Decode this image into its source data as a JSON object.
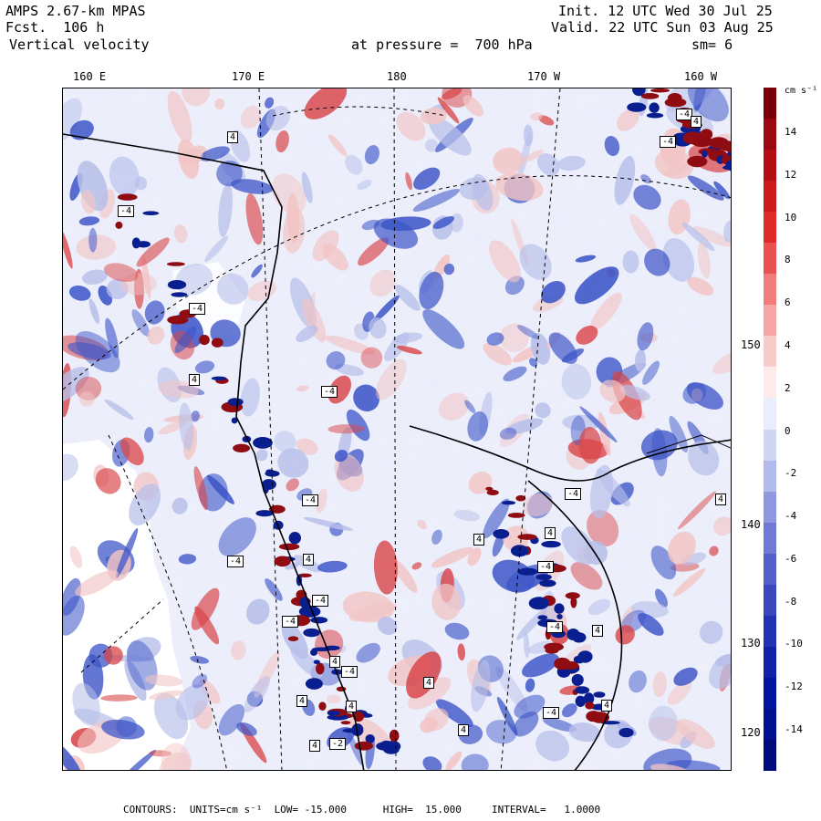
{
  "header": {
    "model": "AMPS 2.67-km MPAS",
    "init": "Init. 12 UTC Wed 30 Jul 25",
    "forecast": "Fcst.  106 h",
    "valid": "Valid. 22 UTC Sun 03 Aug 25",
    "field": "Vertical velocity",
    "level": "at pressure =  700 hPa",
    "smoothing": "sm= 6"
  },
  "map": {
    "longitude_labels": [
      "160 E",
      "170 E",
      "180",
      "170 W",
      "160 W"
    ],
    "latitude_labels": [
      "150 W",
      "140 W",
      "130 W",
      "120 W"
    ],
    "contour_labels": [
      "-4",
      "4",
      "-4",
      "4",
      "-4",
      "-4",
      "4",
      "-4",
      "4",
      "-4",
      "-4",
      "4",
      "-4",
      "-4",
      "4",
      "-4",
      "4",
      "-2",
      "4",
      "4",
      "-4",
      "4",
      "4",
      "4",
      "-4",
      "4",
      "-4",
      "-4",
      "4",
      "4"
    ],
    "colors": {
      "strong_down": "#0a1f8f",
      "down": "#3e56c8",
      "weak_down": "#b7bfe9",
      "neutral": "#eef0fb",
      "weak_up": "#f2c4c4",
      "up": "#d9474a",
      "strong_up": "#8e0c12",
      "land_white": "#ffffff"
    }
  },
  "colorbar": {
    "unit": "cm s⁻¹",
    "tick_labels": [
      "14",
      "12",
      "10",
      "8",
      "6",
      "4",
      "2",
      "0",
      "-2",
      "-4",
      "-6",
      "-8",
      "-10",
      "-12",
      "-14"
    ],
    "colors": [
      "#7a0008",
      "#9a0a10",
      "#b50f16",
      "#cc1a1e",
      "#e02b2b",
      "#ea5252",
      "#f07c7c",
      "#f5a5a5",
      "#f9cccc",
      "#fdeaea",
      "#eaedfb",
      "#cfd5f3",
      "#b2bbec",
      "#9099e0",
      "#7079d3",
      "#5260c8",
      "#3a48bd",
      "#2332b2",
      "#0f22a8",
      "#0015a0",
      "#001090",
      "#000c7e"
    ]
  },
  "footer": {
    "text": "CONTOURS:  UNITS=cm s⁻¹  LOW= -15.000      HIGH=  15.000     INTERVAL=   1.0000"
  }
}
